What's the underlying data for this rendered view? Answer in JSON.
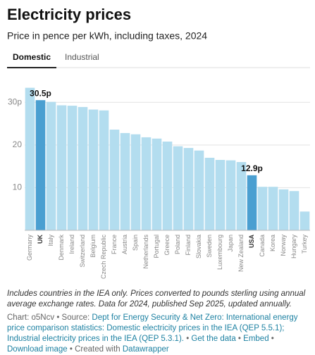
{
  "chart_data": {
    "type": "bar",
    "title": "Electricity prices",
    "subtitle": "Price in pence per kWh, including taxes, 2024",
    "categories": [
      "Germany",
      "UK",
      "Italy",
      "Denmark",
      "Ireland",
      "Switzerland",
      "Belgium",
      "Czech Republic",
      "France",
      "Austria",
      "Spain",
      "Netherlands",
      "Portugal",
      "Greece",
      "Poland",
      "Finland",
      "Slovakia",
      "Sweden",
      "Luxembourg",
      "Japan",
      "New Zealand",
      "USA",
      "Canada",
      "Korea",
      "Norway",
      "Hungary",
      "Turkey"
    ],
    "values": [
      33.4,
      30.5,
      30.1,
      29.3,
      29.2,
      28.9,
      28.3,
      28.1,
      23.6,
      22.8,
      22.5,
      21.8,
      21.5,
      20.8,
      19.7,
      19.3,
      18.7,
      17.0,
      16.5,
      16.4,
      16.0,
      12.9,
      10.2,
      10.2,
      9.6,
      9.2,
      4.4
    ],
    "value_labels": [
      null,
      "30.5p",
      null,
      null,
      null,
      null,
      null,
      null,
      null,
      null,
      null,
      null,
      null,
      null,
      null,
      null,
      null,
      null,
      null,
      null,
      null,
      "12.9p",
      null,
      null,
      null,
      null,
      null
    ],
    "colors": [
      "#b3ddef",
      "#4a9fd1",
      "#b3ddef",
      "#b3ddef",
      "#b3ddef",
      "#b3ddef",
      "#b3ddef",
      "#b3ddef",
      "#b3ddef",
      "#b3ddef",
      "#b3ddef",
      "#b3ddef",
      "#b3ddef",
      "#b3ddef",
      "#b3ddef",
      "#b3ddef",
      "#b3ddef",
      "#b3ddef",
      "#b3ddef",
      "#b3ddef",
      "#b3ddef",
      "#4a9fd1",
      "#b3ddef",
      "#b3ddef",
      "#b3ddef",
      "#b3ddef",
      "#b3ddef"
    ],
    "ylim": [
      0,
      34
    ],
    "yticks": [
      10,
      20,
      {
        "value": 30,
        "label": "30p"
      }
    ],
    "grid": true
  },
  "tabs": {
    "items": [
      "Domestic",
      "Industrial"
    ],
    "active": 0
  },
  "footer": {
    "note": "Includes countries in the IEA only. Prices converted to pounds sterling using annual average exchange rates. Data for 2024, published Sep 2025, updated annually.",
    "chart_id": "Chart: o5Ncv",
    "separator": "•",
    "source_label": "Source:",
    "source": "Dept for Energy Security & Net Zero: International energy price comparison statistics: Domestic electricity prices in the IEA (QEP 5.5.1); Industrial electricity prices in the IEA (QEP 5.3.1).",
    "links": [
      "Get the data",
      "Embed",
      "Download image"
    ],
    "created_with": "Created with",
    "credit": "Datawrapper"
  }
}
